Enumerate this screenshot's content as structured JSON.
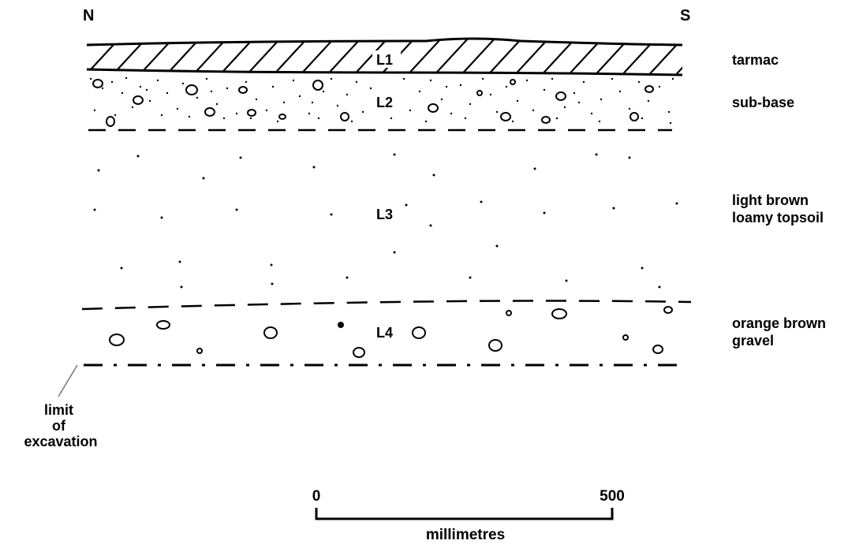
{
  "orientation": {
    "north": "N",
    "south": "S"
  },
  "layers": [
    {
      "id": "L1",
      "description": "tarmac"
    },
    {
      "id": "L2",
      "description": "sub-base"
    },
    {
      "id": "L3",
      "description_lines": [
        "light brown",
        "loamy topsoil"
      ]
    },
    {
      "id": "L4",
      "description_lines": [
        "orange brown",
        "gravel"
      ]
    }
  ],
  "limit_label": [
    "limit",
    "of",
    "excavation"
  ],
  "scale": {
    "start": "0",
    "end": "500",
    "unit": "millimetres"
  }
}
